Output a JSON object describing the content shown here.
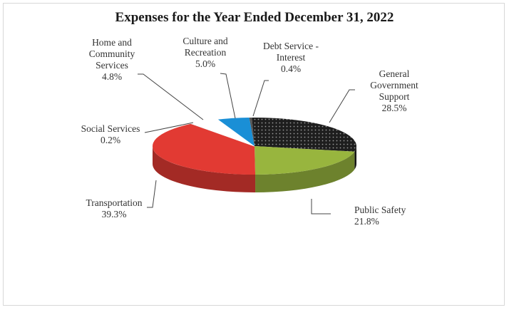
{
  "chart_data": {
    "type": "pie",
    "title": "Expenses for the Year Ended December 31, 2022",
    "three_d": true,
    "slices": [
      {
        "key": "general",
        "label_lines": [
          "General",
          "Government",
          "Support"
        ],
        "value": 28.5,
        "value_text": "28.5%",
        "color": "#1e1e1e",
        "pattern": "dots"
      },
      {
        "key": "public",
        "label_lines": [
          "Public Safety"
        ],
        "value": 21.8,
        "value_text": "21.8%",
        "color": "#98b53e"
      },
      {
        "key": "transport",
        "label_lines": [
          "Transportation"
        ],
        "value": 39.3,
        "value_text": "39.3%",
        "color": "#e23a33"
      },
      {
        "key": "social",
        "label_lines": [
          "Social Services"
        ],
        "value": 0.2,
        "value_text": "0.2%",
        "color": "#9b2d2d"
      },
      {
        "key": "home",
        "label_lines": [
          "Home and",
          "Community",
          "Services"
        ],
        "value": 4.8,
        "value_text": "4.8%",
        "color": "#ffffff"
      },
      {
        "key": "culture",
        "label_lines": [
          "Culture and",
          "Recreation"
        ],
        "value": 5.0,
        "value_text": "5.0%",
        "color": "#1a8fd6"
      },
      {
        "key": "debt",
        "label_lines": [
          "Debt Service -",
          "Interest"
        ],
        "value": 0.4,
        "value_text": "0.4%",
        "color": "#555555"
      }
    ]
  }
}
